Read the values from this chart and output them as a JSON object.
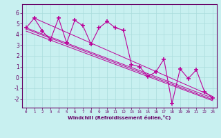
{
  "xlabel": "Windchill (Refroidissement éolien,°C)",
  "bg_color": "#c8f0f0",
  "grid_color": "#aadddd",
  "line_color": "#bb0099",
  "spine_color": "#660066",
  "tick_color": "#660066",
  "xlim": [
    -0.5,
    23.5
  ],
  "ylim": [
    -2.8,
    6.8
  ],
  "yticks": [
    -2,
    -1,
    0,
    1,
    2,
    3,
    4,
    5,
    6
  ],
  "xticks": [
    0,
    1,
    2,
    3,
    4,
    5,
    6,
    7,
    8,
    9,
    10,
    11,
    12,
    13,
    14,
    15,
    16,
    17,
    18,
    19,
    20,
    21,
    22,
    23
  ],
  "series": [
    [
      0,
      4.6
    ],
    [
      1,
      5.5
    ],
    [
      2,
      4.3
    ],
    [
      3,
      3.5
    ],
    [
      4,
      5.5
    ],
    [
      5,
      3.2
    ],
    [
      6,
      5.3
    ],
    [
      7,
      4.8
    ],
    [
      8,
      3.1
    ],
    [
      9,
      4.6
    ],
    [
      10,
      5.2
    ],
    [
      11,
      4.6
    ],
    [
      12,
      4.4
    ],
    [
      13,
      1.2
    ],
    [
      14,
      1.0
    ],
    [
      15,
      0.1
    ],
    [
      16,
      0.5
    ],
    [
      17,
      1.7
    ],
    [
      18,
      -2.4
    ],
    [
      19,
      0.8
    ],
    [
      20,
      -0.1
    ],
    [
      21,
      0.7
    ],
    [
      22,
      -1.3
    ],
    [
      23,
      -1.9
    ]
  ],
  "reg_lines": [
    [
      [
        0,
        23
      ],
      [
        4.6,
        -1.9
      ]
    ],
    [
      [
        0,
        23
      ],
      [
        4.5,
        -2.05
      ]
    ],
    [
      [
        0,
        23
      ],
      [
        4.3,
        -2.15
      ]
    ],
    [
      [
        1,
        23
      ],
      [
        5.5,
        -1.75
      ]
    ]
  ]
}
